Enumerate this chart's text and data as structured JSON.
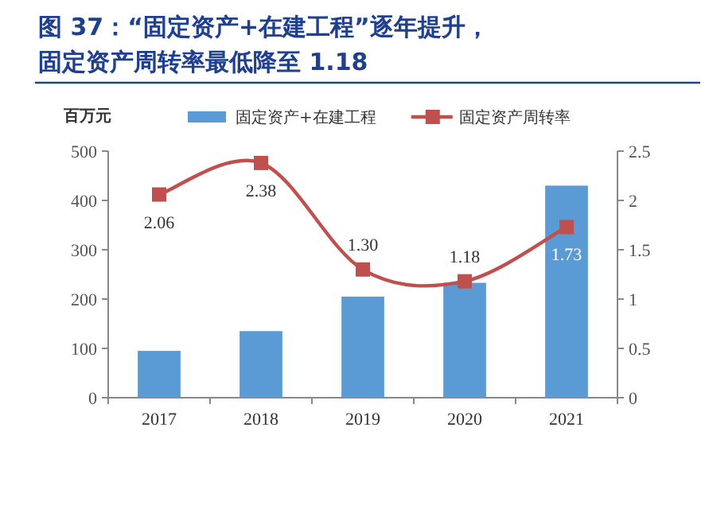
{
  "chart_data": {
    "type": "bar",
    "title": "图 37：“固定资产+在建工程”逐年提升，固定资产周转率最低降至 1.18",
    "ylabel": "百万元",
    "categories": [
      "2017",
      "2018",
      "2019",
      "2020",
      "2021"
    ],
    "series": [
      {
        "name": "固定资产+在建工程",
        "color": "#5b9bd5",
        "values": [
          95,
          135,
          205,
          233,
          430
        ]
      },
      {
        "name": "固定资产周转率",
        "type": "line",
        "axis": "y2",
        "color": "#c0504d",
        "marker": "square",
        "data_labels": true,
        "values": [
          2.06,
          2.38,
          1.3,
          1.18,
          1.73
        ],
        "value_labels": [
          "2.06",
          "2.38",
          "1.30",
          "1.18",
          "1.73"
        ]
      }
    ],
    "ylim": [
      0,
      500
    ],
    "yticks": [
      0,
      100,
      200,
      300,
      400,
      500
    ],
    "y2lim": [
      0,
      2.5
    ],
    "y2ticks": [
      0,
      0.5,
      1,
      1.5,
      2,
      2.5
    ],
    "legend": "top",
    "grid": false
  }
}
